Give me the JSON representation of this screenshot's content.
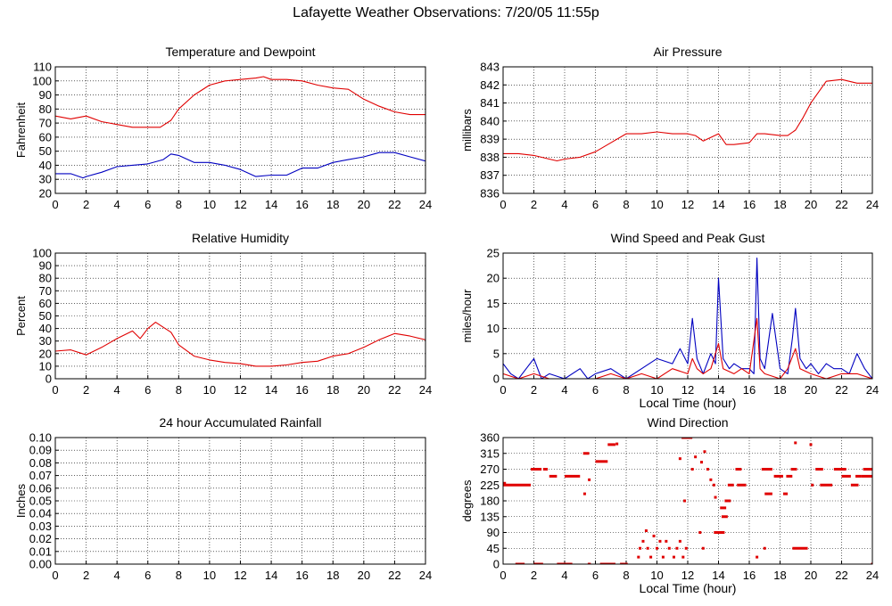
{
  "page_title": "Lafayette Weather Observations: 7/20/05 11:55p",
  "colors": {
    "red": "#e00000",
    "blue": "#0000c0",
    "grid": "#000000"
  },
  "chart_data": [
    {
      "id": "temp",
      "type": "line",
      "title": "Temperature and Dewpoint",
      "xlabel": "",
      "ylabel": "Fahrenheit",
      "xlim": [
        0,
        24
      ],
      "ylim": [
        20,
        110
      ],
      "xticks": [
        0,
        2,
        4,
        6,
        8,
        10,
        12,
        14,
        16,
        18,
        20,
        22,
        24
      ],
      "yticks": [
        20,
        30,
        40,
        50,
        60,
        70,
        80,
        90,
        100,
        110
      ],
      "ytick_labels": [
        "20",
        "30",
        "40",
        "50",
        "60",
        "70",
        "80",
        "90",
        "100",
        "110"
      ],
      "grid": true,
      "series": [
        {
          "color": "#e00000",
          "x": [
            0,
            1,
            2,
            3,
            4,
            5,
            6,
            6.8,
            7.5,
            8,
            9,
            10,
            11,
            12,
            13,
            13.5,
            14,
            15,
            16,
            17,
            18,
            19,
            20,
            21,
            22,
            23,
            24
          ],
          "y": [
            75,
            73,
            75,
            71,
            69,
            67,
            67,
            67,
            72,
            80,
            90,
            97,
            100,
            101,
            102,
            103,
            101,
            101,
            100,
            97,
            95,
            94,
            87,
            82,
            78,
            76,
            76
          ]
        },
        {
          "color": "#0000c0",
          "x": [
            0,
            1,
            1.8,
            2,
            3,
            4,
            5,
            6,
            7,
            7.5,
            8,
            9,
            10,
            11,
            12,
            13,
            14,
            15,
            16,
            17,
            18,
            19,
            20,
            21,
            22,
            23,
            24
          ],
          "y": [
            34,
            34,
            31,
            32,
            35,
            39,
            40,
            41,
            44,
            48,
            47,
            42,
            42,
            40,
            37,
            32,
            33,
            33,
            38,
            38,
            42,
            44,
            46,
            49,
            49,
            46,
            43
          ]
        }
      ]
    },
    {
      "id": "pressure",
      "type": "line",
      "title": "Air Pressure",
      "xlabel": "",
      "ylabel": "millibars",
      "xlim": [
        0,
        24
      ],
      "ylim": [
        836,
        843
      ],
      "xticks": [
        0,
        2,
        4,
        6,
        8,
        10,
        12,
        14,
        16,
        18,
        20,
        22,
        24
      ],
      "yticks": [
        836,
        837,
        838,
        839,
        840,
        841,
        842,
        843
      ],
      "ytick_labels": [
        "836",
        "837",
        "838",
        "839",
        "840",
        "841",
        "842",
        "843"
      ],
      "grid": true,
      "series": [
        {
          "color": "#e00000",
          "x": [
            0,
            1,
            2,
            3,
            3.5,
            4,
            5,
            6,
            7,
            8,
            9,
            10,
            11,
            12,
            12.5,
            13,
            14,
            14.5,
            15,
            16,
            16.5,
            17,
            18,
            18.5,
            19,
            19.5,
            20,
            21,
            22,
            23,
            24
          ],
          "y": [
            838.2,
            838.2,
            838.1,
            837.9,
            837.8,
            837.9,
            838.0,
            838.3,
            838.8,
            839.3,
            839.3,
            839.4,
            839.3,
            839.3,
            839.2,
            838.9,
            839.3,
            838.7,
            838.7,
            838.8,
            839.3,
            839.3,
            839.2,
            839.2,
            839.5,
            840.2,
            841.0,
            842.2,
            842.3,
            842.1,
            842.1
          ]
        }
      ]
    },
    {
      "id": "humidity",
      "type": "line",
      "title": "Relative Humidity",
      "xlabel": "",
      "ylabel": "Percent",
      "xlim": [
        0,
        24
      ],
      "ylim": [
        0,
        100
      ],
      "xticks": [
        0,
        2,
        4,
        6,
        8,
        10,
        12,
        14,
        16,
        18,
        20,
        22,
        24
      ],
      "yticks": [
        0,
        10,
        20,
        30,
        40,
        50,
        60,
        70,
        80,
        90,
        100
      ],
      "ytick_labels": [
        "0",
        "10",
        "20",
        "30",
        "40",
        "50",
        "60",
        "70",
        "80",
        "90",
        "100"
      ],
      "grid": true,
      "series": [
        {
          "color": "#e00000",
          "x": [
            0,
            1,
            2,
            3,
            4,
            5,
            5.5,
            6,
            6.5,
            7,
            7.5,
            8,
            9,
            10,
            11,
            12,
            13,
            14,
            15,
            16,
            17,
            18,
            19,
            20,
            21,
            22,
            23,
            24
          ],
          "y": [
            22,
            23,
            19,
            25,
            32,
            38,
            32,
            40,
            45,
            41,
            37,
            27,
            18,
            15,
            13,
            12,
            10,
            10,
            11,
            13,
            14,
            18,
            20,
            25,
            31,
            36,
            34,
            31
          ]
        }
      ]
    },
    {
      "id": "wind",
      "type": "line",
      "title": "Wind Speed and Peak Gust",
      "xlabel": "Local Time (hour)",
      "ylabel": "miles/hour",
      "xlim": [
        0,
        24
      ],
      "ylim": [
        0,
        25
      ],
      "xticks": [
        0,
        2,
        4,
        6,
        8,
        10,
        12,
        14,
        16,
        18,
        20,
        22,
        24
      ],
      "yticks": [
        0,
        5,
        10,
        15,
        20,
        25
      ],
      "ytick_labels": [
        "0",
        "5",
        "10",
        "15",
        "20",
        "25"
      ],
      "grid": true,
      "series": [
        {
          "color": "#0000c0",
          "x": [
            0,
            0.5,
            1,
            1.5,
            2,
            2.5,
            3,
            4,
            5,
            5.5,
            6,
            7,
            8,
            9,
            10,
            11,
            11.5,
            12,
            12.3,
            12.6,
            13,
            13.5,
            13.8,
            14,
            14.3,
            14.7,
            15,
            15.5,
            16,
            16.3,
            16.5,
            16.7,
            17,
            17.5,
            18,
            18.5,
            18.8,
            19,
            19.3,
            19.7,
            20,
            20.5,
            21,
            21.5,
            22,
            22.5,
            23,
            23.5,
            24
          ],
          "y": [
            3,
            1,
            0,
            2,
            4,
            0,
            1,
            0,
            2,
            0,
            1,
            2,
            0,
            2,
            4,
            3,
            6,
            3,
            12,
            4,
            1,
            5,
            3,
            20,
            4,
            2,
            3,
            2,
            2,
            1,
            24,
            4,
            2,
            13,
            2,
            1,
            8,
            14,
            4,
            2,
            3,
            1,
            3,
            2,
            2,
            1,
            5,
            2,
            0
          ]
        },
        {
          "color": "#e00000",
          "x": [
            0,
            1,
            2,
            3,
            4,
            5,
            6,
            7,
            8,
            9,
            10,
            11,
            12,
            12.3,
            12.6,
            13,
            13.5,
            14,
            14.3,
            15,
            15.5,
            16,
            16.5,
            16.7,
            17,
            18,
            18.5,
            19,
            19.3,
            20,
            21,
            22,
            23,
            24
          ],
          "y": [
            1,
            0,
            1,
            0,
            0,
            0,
            0,
            1,
            0,
            1,
            0,
            2,
            1,
            4,
            2,
            1,
            2,
            7,
            2,
            1,
            2,
            1,
            12,
            2,
            1,
            0,
            2,
            6,
            2,
            1,
            0,
            1,
            1,
            0
          ]
        }
      ]
    },
    {
      "id": "rain",
      "type": "line",
      "title": "24 hour Accumulated Rainfall",
      "xlabel": "",
      "ylabel": "Inches",
      "xlim": [
        0,
        24
      ],
      "ylim": [
        0,
        0.1
      ],
      "xticks": [
        0,
        2,
        4,
        6,
        8,
        10,
        12,
        14,
        16,
        18,
        20,
        22,
        24
      ],
      "yticks": [
        0,
        0.01,
        0.02,
        0.03,
        0.04,
        0.05,
        0.06,
        0.07,
        0.08,
        0.09,
        0.1
      ],
      "ytick_labels": [
        "0.00",
        "0.01",
        "0.02",
        "0.03",
        "0.04",
        "0.05",
        "0.06",
        "0.07",
        "0.08",
        "0.09",
        "0.10"
      ],
      "grid": true,
      "series": [
        {
          "color": "#e00000",
          "x": [
            0,
            24
          ],
          "y": [
            0,
            0
          ]
        }
      ]
    },
    {
      "id": "direction",
      "type": "scatter",
      "title": "Wind Direction",
      "xlabel": "Local Time (hour)",
      "ylabel": "degrees",
      "xlim": [
        0,
        24
      ],
      "ylim": [
        0,
        360
      ],
      "xticks": [
        0,
        2,
        4,
        6,
        8,
        10,
        12,
        14,
        16,
        18,
        20,
        22,
        24
      ],
      "yticks": [
        0,
        45,
        90,
        135,
        180,
        225,
        270,
        315,
        360
      ],
      "ytick_labels": [
        "0",
        "45",
        "90",
        "135",
        "180",
        "225",
        "270",
        "315",
        "360"
      ],
      "grid": true,
      "series": [
        {
          "color": "#e00000",
          "segments": [
            [
              0.0,
              1.8,
              225
            ],
            [
              1.8,
              2.5,
              270
            ],
            [
              2.6,
              2.9,
              270
            ],
            [
              3.0,
              3.5,
              250
            ],
            [
              4.0,
              5.0,
              250
            ],
            [
              5.2,
              5.6,
              315
            ],
            [
              6.0,
              6.8,
              292
            ],
            [
              6.8,
              7.3,
              340
            ],
            [
              7.3,
              8.5,
              365
            ],
            [
              8.8,
              9.6,
              365
            ],
            [
              9.8,
              10.1,
              365
            ],
            [
              10.6,
              11.4,
              365
            ],
            [
              11.6,
              12.3,
              360
            ],
            [
              16.0,
              17.0,
              365
            ],
            [
              16.8,
              17.5,
              270
            ],
            [
              17.0,
              17.5,
              200
            ],
            [
              17.6,
              18.2,
              250
            ],
            [
              18.4,
              18.8,
              250
            ],
            [
              18.2,
              18.5,
              200
            ],
            [
              18.7,
              19.1,
              270
            ],
            [
              18.8,
              19.8,
              45
            ],
            [
              19.8,
              20.5,
              365
            ],
            [
              20.3,
              20.8,
              270
            ],
            [
              20.6,
              21.4,
              225
            ],
            [
              21.5,
              22.3,
              270
            ],
            [
              22.0,
              22.6,
              250
            ],
            [
              22.6,
              23.1,
              225
            ],
            [
              22.9,
              23.3,
              250
            ],
            [
              23.4,
              24.0,
              270
            ],
            [
              23.3,
              24.0,
              250
            ],
            [
              13.7,
              14.4,
              90
            ],
            [
              14.1,
              14.5,
              160
            ],
            [
              14.2,
              14.6,
              135
            ],
            [
              14.4,
              14.8,
              180
            ],
            [
              14.6,
              15.0,
              225
            ],
            [
              15.1,
              15.5,
              270
            ],
            [
              15.2,
              15.8,
              225
            ],
            [
              0.8,
              1.4,
              0
            ],
            [
              2.0,
              2.6,
              0
            ],
            [
              3.5,
              4.5,
              0
            ],
            [
              5.5,
              5.7,
              0
            ],
            [
              6.3,
              7.3,
              0
            ],
            [
              7.6,
              8.1,
              0
            ]
          ],
          "points": [
            [
              0.1,
              230
            ],
            [
              8.8,
              20
            ],
            [
              8.9,
              45
            ],
            [
              9.1,
              65
            ],
            [
              9.3,
              95
            ],
            [
              9.4,
              45
            ],
            [
              9.6,
              20
            ],
            [
              9.8,
              80
            ],
            [
              10.0,
              45
            ],
            [
              10.2,
              65
            ],
            [
              10.4,
              20
            ],
            [
              10.6,
              65
            ],
            [
              10.8,
              45
            ],
            [
              11.1,
              20
            ],
            [
              11.3,
              45
            ],
            [
              11.5,
              65
            ],
            [
              11.7,
              20
            ],
            [
              11.9,
              45
            ],
            [
              11.8,
              180
            ],
            [
              12.2,
              380
            ],
            [
              12.5,
              305
            ],
            [
              12.8,
              90
            ],
            [
              12.9,
              290
            ],
            [
              13.0,
              45
            ],
            [
              13.1,
              320
            ],
            [
              13.3,
              270
            ],
            [
              13.5,
              240
            ],
            [
              13.7,
              225
            ],
            [
              5.3,
              200
            ],
            [
              5.6,
              240
            ],
            [
              7.4,
              342
            ],
            [
              11.5,
              300
            ],
            [
              12.3,
              270
            ],
            [
              13.8,
              190
            ],
            [
              19.0,
              345
            ],
            [
              20.0,
              340
            ],
            [
              20.1,
              225
            ],
            [
              24.0,
              0
            ],
            [
              16.5,
              20
            ],
            [
              17.0,
              45
            ]
          ]
        }
      ]
    }
  ]
}
